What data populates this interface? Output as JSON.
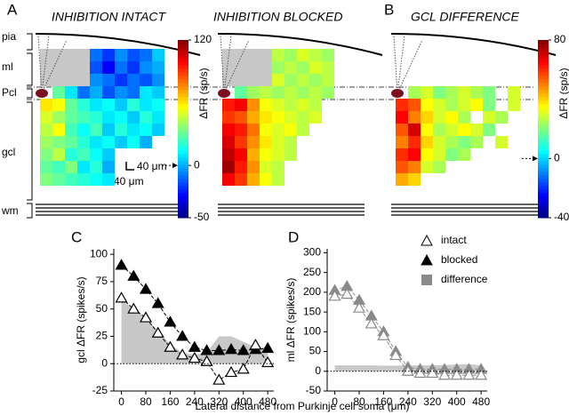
{
  "figure": {
    "panel_labels": [
      "A",
      "B",
      "C",
      "D"
    ],
    "layers": [
      "pia",
      "ml",
      "Pcl",
      "gcl",
      "wm"
    ],
    "scale_bar": [
      "40 μm",
      "40 μm"
    ],
    "xlabel": "Lateral distance from Purkinje cell soma (μm)"
  },
  "chart_data": [
    {
      "type": "heatmap",
      "title": "INHIBITION INTACT",
      "colormap": "jet",
      "zlim": [
        -50,
        120
      ],
      "zticks": [
        -50,
        0,
        120
      ],
      "colorbar_label": "ΔFR (sp/s)",
      "z": [
        [
          null,
          null,
          null,
          null,
          -10,
          -20,
          -5,
          -15,
          -10,
          5
        ],
        [
          null,
          null,
          null,
          null,
          -15,
          -30,
          -10,
          -20,
          -5,
          0
        ],
        [
          null,
          null,
          null,
          null,
          -5,
          -10,
          -20,
          -10,
          -15,
          -5
        ],
        [
          null,
          30,
          10,
          -10,
          0,
          -15,
          -5,
          -10,
          10,
          5
        ],
        [
          60,
          55,
          30,
          20,
          10,
          15,
          5,
          20,
          10,
          15
        ],
        [
          50,
          40,
          30,
          25,
          20,
          10,
          15,
          5,
          20,
          10
        ],
        [
          45,
          55,
          25,
          15,
          25,
          5,
          20,
          10,
          15,
          5
        ],
        [
          40,
          35,
          30,
          20,
          10,
          15,
          5,
          15,
          0,
          null
        ],
        [
          35,
          45,
          20,
          25,
          15,
          5,
          null,
          null,
          null,
          null
        ],
        [
          30,
          25,
          35,
          10,
          20,
          0,
          null,
          null,
          null,
          null
        ],
        [
          35,
          30,
          25,
          20,
          15,
          10,
          null,
          null,
          null,
          null
        ]
      ]
    },
    {
      "type": "heatmap",
      "title": "INHIBITION BLOCKED",
      "colormap": "jet",
      "zlim": [
        -50,
        120
      ],
      "z": [
        [
          null,
          null,
          null,
          null,
          45,
          40,
          50,
          45,
          40,
          null
        ],
        [
          null,
          null,
          null,
          null,
          40,
          45,
          40,
          50,
          45,
          null
        ],
        [
          null,
          null,
          null,
          null,
          50,
          40,
          45,
          40,
          45,
          null
        ],
        [
          null,
          30,
          40,
          45,
          40,
          45,
          40,
          45,
          40,
          null
        ],
        [
          95,
          100,
          75,
          55,
          50,
          45,
          50,
          45,
          null,
          null
        ],
        [
          90,
          85,
          70,
          60,
          55,
          50,
          45,
          50,
          null,
          null
        ],
        [
          100,
          95,
          80,
          55,
          50,
          55,
          45,
          null,
          null,
          null
        ],
        [
          105,
          90,
          75,
          60,
          50,
          45,
          null,
          null,
          null,
          null
        ],
        [
          110,
          100,
          70,
          55,
          50,
          45,
          null,
          null,
          null,
          null
        ],
        [
          115,
          95,
          75,
          50,
          45,
          null,
          null,
          null,
          null,
          null
        ],
        [
          100,
          90,
          70,
          55,
          45,
          null,
          null,
          null,
          null,
          null
        ]
      ]
    },
    {
      "type": "heatmap",
      "title": "GCL DIFFERENCE",
      "colormap": "jet",
      "zlim": [
        -40,
        80
      ],
      "zticks": [
        -40,
        0,
        80
      ],
      "colorbar_label": "ΔFR (sp/s)",
      "z": [
        [
          null,
          null,
          null,
          null,
          null,
          null,
          null,
          null,
          null,
          null
        ],
        [
          null,
          null,
          null,
          null,
          null,
          null,
          null,
          null,
          null,
          null
        ],
        [
          null,
          null,
          null,
          null,
          null,
          null,
          null,
          null,
          null,
          null
        ],
        [
          null,
          25,
          30,
          20,
          25,
          30,
          25,
          20,
          null,
          30
        ],
        [
          60,
          55,
          35,
          30,
          25,
          30,
          35,
          20,
          null,
          30
        ],
        [
          65,
          50,
          40,
          30,
          35,
          25,
          null,
          30,
          25,
          null
        ],
        [
          55,
          70,
          35,
          25,
          30,
          35,
          30,
          20,
          null,
          null
        ],
        [
          50,
          60,
          40,
          30,
          25,
          20,
          25,
          null,
          30,
          null
        ],
        [
          60,
          65,
          35,
          30,
          20,
          25,
          null,
          null,
          null,
          null
        ],
        [
          55,
          50,
          30,
          25,
          null,
          null,
          null,
          null,
          null,
          null
        ],
        [
          45,
          40,
          null,
          null,
          null,
          null,
          null,
          null,
          null,
          null
        ]
      ]
    },
    {
      "type": "line",
      "ylabel": "gcl ΔFR (spikes/s)",
      "x": [
        0,
        40,
        80,
        120,
        160,
        200,
        240,
        280,
        320,
        360,
        400,
        440,
        480
      ],
      "xlim": [
        -25,
        500
      ],
      "xticks": [
        0,
        80,
        160,
        240,
        320,
        400,
        480
      ],
      "ylim": [
        -25,
        105
      ],
      "yticks": [
        -25,
        0,
        25,
        50,
        75,
        100
      ],
      "series": [
        {
          "style": "area",
          "color": "#c8c8c8",
          "values": [
            58,
            50,
            42,
            30,
            18,
            10,
            8,
            10,
            25,
            25,
            20,
            15,
            15
          ]
        },
        {
          "style": "marker",
          "color": "#000000",
          "fill": "#000000",
          "values": [
            90,
            80,
            68,
            55,
            38,
            25,
            15,
            12,
            12,
            13,
            12,
            13,
            14
          ]
        },
        {
          "style": "marker",
          "color": "#000000",
          "fill": "#ffffff",
          "values": [
            60,
            50,
            42,
            28,
            15,
            8,
            5,
            2,
            -15,
            -8,
            -5,
            17,
            1
          ]
        }
      ]
    },
    {
      "type": "line",
      "ylabel": "ml ΔFR (spikes/s)",
      "x": [
        0,
        40,
        80,
        120,
        160,
        200,
        240,
        280,
        320,
        360,
        400,
        440,
        480
      ],
      "xlim": [
        -25,
        500
      ],
      "xticks": [
        0,
        80,
        160,
        240,
        320,
        400,
        480
      ],
      "ylim": [
        -50,
        310
      ],
      "yticks": [
        -50,
        0,
        50,
        100,
        150,
        200,
        250,
        300
      ],
      "series": [
        {
          "name": "difference",
          "style": "area",
          "color": "#c8c8c8",
          "values": [
            15,
            15,
            15,
            15,
            14,
            14,
            15,
            15,
            15,
            16,
            17,
            18,
            15
          ]
        },
        {
          "name": "blocked",
          "style": "marker",
          "color": "#8a8a8a",
          "fill": "#8a8a8a",
          "values": [
            205,
            215,
            180,
            140,
            100,
            50,
            10,
            5,
            5,
            5,
            5,
            5,
            5
          ]
        },
        {
          "name": "intact",
          "style": "marker",
          "color": "#8a8a8a",
          "fill": "#ffffff",
          "values": [
            190,
            195,
            160,
            120,
            90,
            40,
            0,
            -5,
            -5,
            -10,
            -10,
            -10,
            -10
          ]
        }
      ]
    }
  ]
}
